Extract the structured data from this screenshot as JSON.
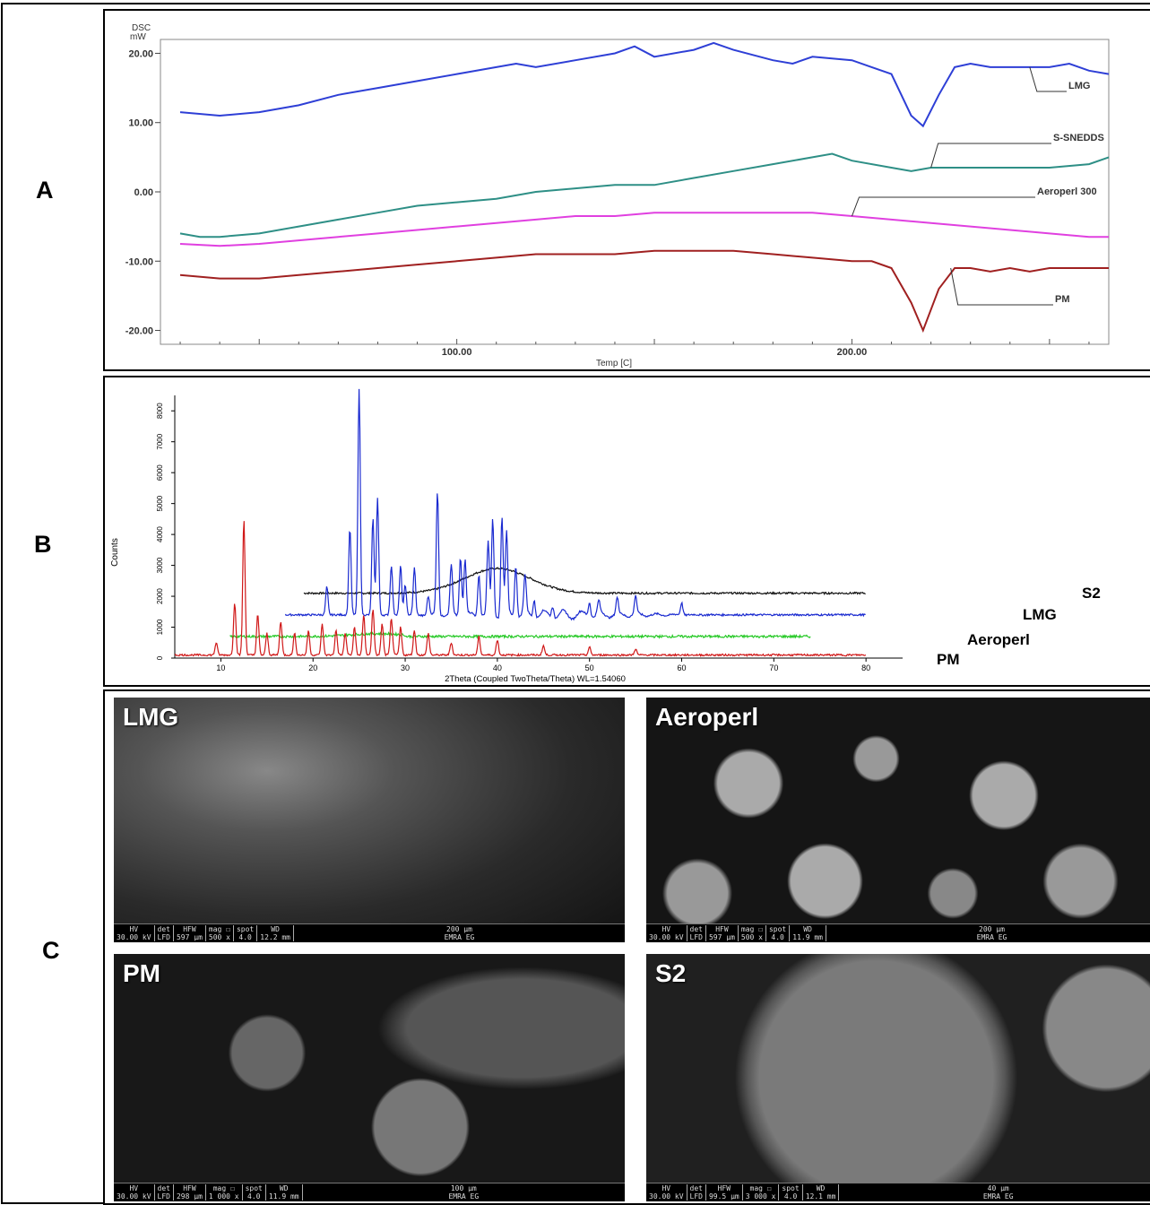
{
  "panels": {
    "a": "A",
    "b": "B",
    "c": "C"
  },
  "chart_data": [
    {
      "type": "line",
      "ylabel_top": "DSC",
      "ylabel_unit": "mW",
      "xlabel": "Temp [C]",
      "xlim": [
        25,
        265
      ],
      "ylim": [
        -22,
        22
      ],
      "yticks": [
        "20.00",
        "10.00",
        "0.00",
        "-10.00",
        "-20.00"
      ],
      "ytick_values": [
        20,
        10,
        0,
        -10,
        -20
      ],
      "xticks": [
        "100.00",
        "200.00"
      ],
      "xtick_values": [
        100,
        200
      ],
      "series": [
        {
          "name": "LMG",
          "color": "#2e3fd6",
          "x": [
            30,
            40,
            50,
            60,
            70,
            80,
            90,
            100,
            110,
            115,
            120,
            130,
            140,
            145,
            150,
            160,
            165,
            170,
            180,
            185,
            190,
            200,
            205,
            210,
            215,
            218,
            222,
            226,
            230,
            235,
            240,
            245,
            250,
            255,
            260,
            265
          ],
          "y": [
            11.5,
            11,
            11.5,
            12.5,
            14,
            15,
            16,
            17,
            18,
            18.5,
            18,
            19,
            20,
            21,
            19.5,
            20.5,
            21.5,
            20.5,
            19,
            18.5,
            19.5,
            19,
            18,
            17,
            11,
            9.5,
            14,
            18,
            18.5,
            18,
            18,
            18,
            18,
            18.5,
            17.5,
            17
          ]
        },
        {
          "name": "S-SNEDDS",
          "color": "#2e8f86",
          "x": [
            30,
            35,
            40,
            50,
            60,
            70,
            80,
            90,
            100,
            110,
            120,
            130,
            140,
            150,
            160,
            170,
            180,
            190,
            195,
            200,
            210,
            215,
            220,
            230,
            240,
            250,
            260,
            265
          ],
          "y": [
            -6,
            -6.5,
            -6.5,
            -6,
            -5,
            -4,
            -3,
            -2,
            -1.5,
            -1,
            0,
            0.5,
            1,
            1,
            2,
            3,
            4,
            5,
            5.5,
            4.5,
            3.5,
            3,
            3.5,
            3.5,
            3.5,
            3.5,
            4,
            5
          ]
        },
        {
          "name": "Aeroperl 300",
          "color": "#e040e0",
          "x": [
            30,
            40,
            50,
            60,
            70,
            80,
            90,
            100,
            110,
            120,
            130,
            140,
            150,
            160,
            170,
            180,
            190,
            200,
            210,
            220,
            230,
            240,
            250,
            260,
            265
          ],
          "y": [
            -7.5,
            -7.8,
            -7.5,
            -7,
            -6.5,
            -6,
            -5.5,
            -5,
            -4.5,
            -4,
            -3.5,
            -3.5,
            -3,
            -3,
            -3,
            -3,
            -3,
            -3.5,
            -4,
            -4.5,
            -5,
            -5.5,
            -6,
            -6.5,
            -6.5
          ]
        },
        {
          "name": "PM",
          "color": "#a02020",
          "x": [
            30,
            40,
            50,
            60,
            70,
            80,
            90,
            100,
            110,
            120,
            130,
            140,
            150,
            160,
            170,
            180,
            190,
            200,
            205,
            210,
            215,
            218,
            222,
            226,
            230,
            235,
            240,
            245,
            250,
            255,
            260,
            265
          ],
          "y": [
            -12,
            -12.5,
            -12.5,
            -12,
            -11.5,
            -11,
            -10.5,
            -10,
            -9.5,
            -9,
            -9,
            -9,
            -8.5,
            -8.5,
            -8.5,
            -9,
            -9.5,
            -10,
            -10,
            -11,
            -16,
            -20,
            -14,
            -11,
            -11,
            -11.5,
            -11,
            -11.5,
            -11,
            -11,
            -11,
            -11
          ]
        }
      ]
    },
    {
      "type": "line",
      "xlabel": "2Theta (Coupled TwoTheta/Theta) WL=1.54060",
      "ylabel": "Counts",
      "xlim": [
        5,
        83
      ],
      "ylim": [
        0,
        8500
      ],
      "xticks": [
        "10",
        "20",
        "30",
        "40",
        "50",
        "60",
        "70",
        "80"
      ],
      "xtick_values": [
        10,
        20,
        30,
        40,
        50,
        60,
        70,
        80
      ],
      "yticks": [
        "0",
        "1000",
        "2000",
        "3000",
        "4000",
        "5000",
        "6000",
        "7000",
        "8000"
      ],
      "ytick_values": [
        0,
        1000,
        2000,
        3000,
        4000,
        5000,
        6000,
        7000,
        8000
      ],
      "series": [
        {
          "name": "S2",
          "color": "#111111",
          "baseline": 2100,
          "xstart": 19,
          "xend": 80,
          "hump": {
            "center": 40,
            "width": 5,
            "height": 800
          }
        },
        {
          "name": "LMG",
          "color": "#1a2ad0",
          "baseline": 1400,
          "xstart": 17,
          "xend": 80,
          "peaks_x": [
            21.5,
            24,
            25,
            26.5,
            27,
            28.5,
            29.5,
            30,
            31,
            32.5,
            33.5,
            35,
            36,
            36.5,
            38,
            39,
            39.5,
            40.5,
            41,
            42,
            43,
            44,
            46,
            50,
            51,
            53,
            55,
            60
          ],
          "peaks_y": [
            2300,
            4200,
            8700,
            4500,
            5200,
            3000,
            3000,
            2400,
            2900,
            2000,
            5400,
            3000,
            3300,
            3200,
            2800,
            3700,
            4500,
            4600,
            4000,
            3100,
            2600,
            2000,
            1800,
            1900,
            1800,
            1900,
            2000,
            1800
          ]
        },
        {
          "name": "Aeroperl",
          "color": "#26c926",
          "baseline": 700,
          "xstart": 11,
          "xend": 74
        },
        {
          "name": "PM",
          "color": "#d01818",
          "baseline": 100,
          "xstart": 5,
          "xend": 80,
          "peaks_x": [
            9.5,
            11.5,
            12.5,
            14,
            15,
            16.5,
            18,
            19.5,
            21,
            22.5,
            23.5,
            24.5,
            25.5,
            26.5,
            27.5,
            28.5,
            29.5,
            31,
            32.5,
            35,
            38,
            40,
            45,
            50,
            55
          ],
          "peaks_y": [
            500,
            1800,
            4500,
            1400,
            800,
            1200,
            800,
            900,
            1100,
            900,
            800,
            1000,
            1400,
            1600,
            1100,
            1300,
            1000,
            900,
            800,
            500,
            700,
            600,
            400,
            350,
            300
          ]
        }
      ],
      "legend_labels": [
        "S2",
        "LMG",
        "Aeroperl",
        "PM"
      ]
    }
  ],
  "sem_images": [
    {
      "label": "LMG",
      "hv": "HV\n30.00 kV",
      "det": "det\nLFD",
      "hfw": "HFW\n597 µm",
      "mag": "mag ☐\n500 x",
      "spot": "spot\n4.0",
      "wd": "WD\n12.2 mm",
      "scale": "200 µm",
      "lab": "EMRA EG"
    },
    {
      "label": "Aeroperl",
      "hv": "HV\n30.00 kV",
      "det": "det\nLFD",
      "hfw": "HFW\n597 µm",
      "mag": "mag ☐\n500 x",
      "spot": "spot\n4.0",
      "wd": "WD\n11.9 mm",
      "scale": "200 µm",
      "lab": "EMRA EG"
    },
    {
      "label": "PM",
      "hv": "HV\n30.00 kV",
      "det": "det\nLFD",
      "hfw": "HFW\n298 µm",
      "mag": "mag ☐\n1 000 x",
      "spot": "spot\n4.0",
      "wd": "WD\n11.9 mm",
      "scale": "100 µm",
      "lab": "EMRA EG"
    },
    {
      "label": "S2",
      "hv": "HV\n30.00 kV",
      "det": "det\nLFD",
      "hfw": "HFW\n99.5 µm",
      "mag": "mag ☐\n3 000 x",
      "spot": "spot\n4.0",
      "wd": "WD\n12.1 mm",
      "scale": "40 µm",
      "lab": "EMRA EG"
    }
  ]
}
